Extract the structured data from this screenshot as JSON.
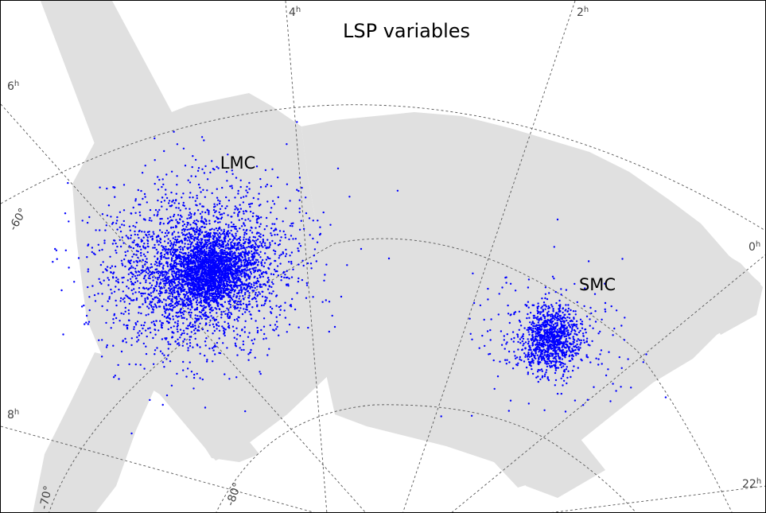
{
  "title": "LSP variables",
  "clouds": {
    "lmc": "LMC",
    "smc": "SMC"
  },
  "ra_labels": {
    "h4": "4",
    "h2": "2",
    "h6": "6",
    "h0": "0",
    "h8": "8",
    "h22": "22",
    "unit": "h"
  },
  "dec_labels": {
    "d60": "-60°",
    "d70": "-70°",
    "d80": "-80°"
  },
  "colors": {
    "stars": "#0000ff",
    "survey_footprint": "#e0e0e0",
    "grid": "#555555"
  },
  "chart_data": {
    "type": "scatter",
    "title": "LSP variables",
    "projection": "polar sky map (south celestial pole region)",
    "grid": true,
    "groups": [
      {
        "name": "LMC",
        "approx_star_count": 4500
      },
      {
        "name": "SMC",
        "approx_star_count": 1200
      }
    ]
  }
}
